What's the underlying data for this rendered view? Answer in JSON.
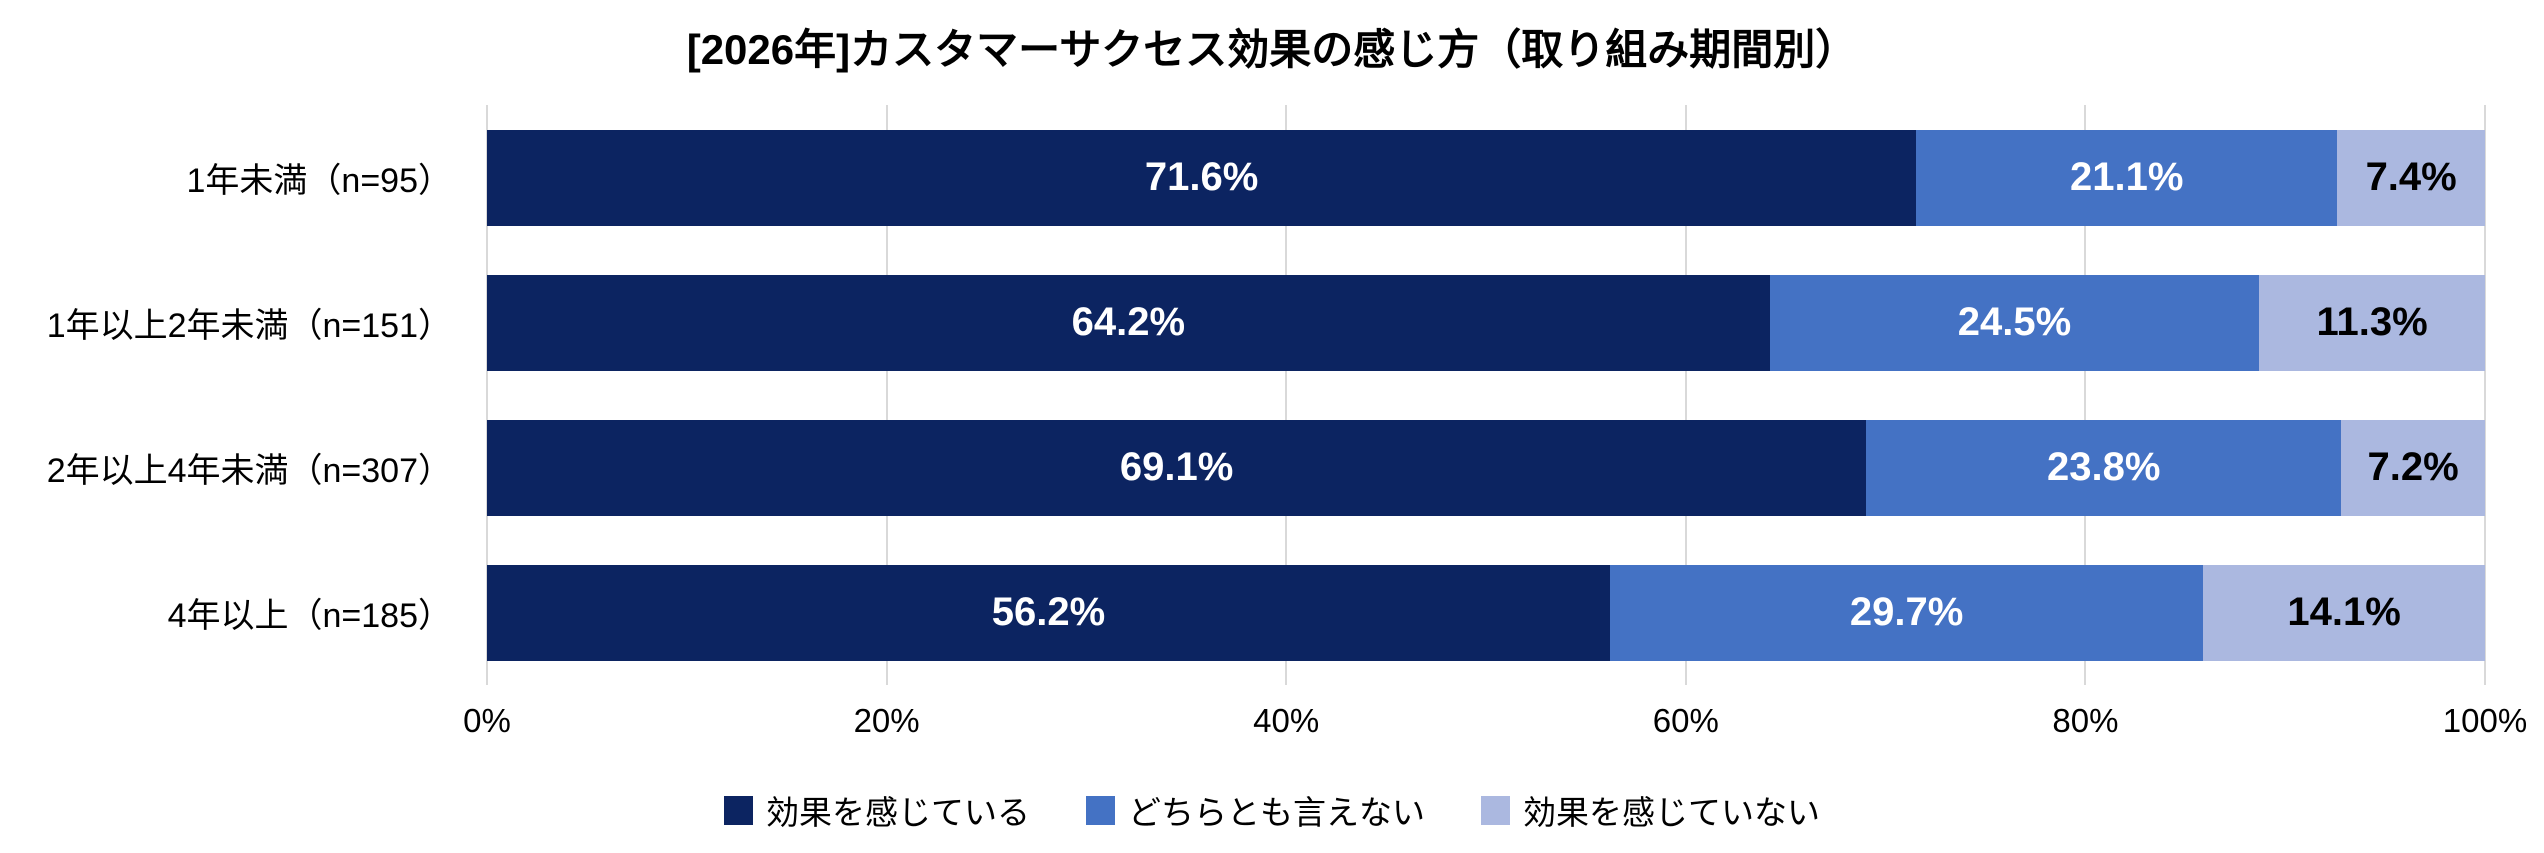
{
  "title": "[2026年]カスタマーサクセス効果の感じ方（取り組み期間別）",
  "colors": {
    "gridline": "#D9D9D9",
    "background": "#FFFFFF",
    "title_text": "#000000",
    "axis_text": "#000000"
  },
  "chart_data": {
    "type": "bar",
    "orientation": "horizontal",
    "stacked": true,
    "title": "[2026年]カスタマーサクセス効果の感じ方（取り組み期間別）",
    "categories": [
      "1年未満（n=95）",
      "1年以上2年未満（n=151）",
      "2年以上4年未満（n=307）",
      "4年以上（n=185）"
    ],
    "series": [
      {
        "name": "効果を感じている",
        "color": "#0C2461",
        "label_color": "#FFFFFF",
        "values": [
          71.6,
          64.2,
          69.1,
          56.2
        ],
        "labels": [
          "71.6%",
          "64.2%",
          "69.1%",
          "56.2%"
        ]
      },
      {
        "name": "どちらとも言えない",
        "color": "#4472C4",
        "label_color": "#FFFFFF",
        "values": [
          21.1,
          24.5,
          23.8,
          29.7
        ],
        "labels": [
          "21.1%",
          "24.5%",
          "23.8%",
          "29.7%"
        ]
      },
      {
        "name": "効果を感じていない",
        "color": "#ABB8E0",
        "label_color": "#000000",
        "values": [
          7.4,
          11.3,
          7.2,
          14.1
        ],
        "labels": [
          "7.4%",
          "11.3%",
          "7.2%",
          "14.1%"
        ]
      }
    ],
    "x_ticks": [
      "0%",
      "20%",
      "40%",
      "60%",
      "80%",
      "100%"
    ],
    "xlim": [
      0,
      100
    ],
    "grid": true,
    "legend_position": "bottom",
    "legend_marker": "filled-square"
  }
}
